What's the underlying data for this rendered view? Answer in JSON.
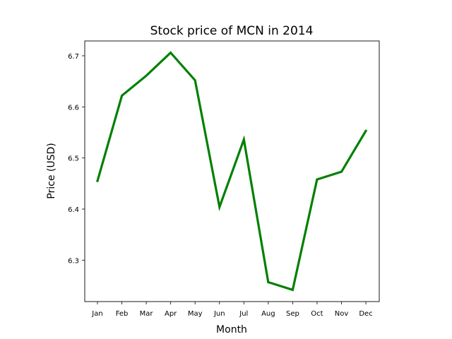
{
  "chart_data": {
    "type": "line",
    "title": "Stock price of MCN in 2014",
    "xlabel": "Month",
    "ylabel": "Price (USD)",
    "categories": [
      "Jan",
      "Feb",
      "Mar",
      "Apr",
      "May",
      "Jun",
      "Jul",
      "Aug",
      "Sep",
      "Oct",
      "Nov",
      "Dec"
    ],
    "series": [
      {
        "values": [
          6.455,
          6.622,
          6.661,
          6.706,
          6.652,
          6.404,
          6.536,
          6.257,
          6.242,
          6.458,
          6.473,
          6.553
        ],
        "color": "#008000"
      }
    ],
    "yticks": [
      "6.3",
      "6.4",
      "6.5",
      "6.6",
      "6.7"
    ],
    "ylim": [
      6.219,
      6.729
    ],
    "grid": false,
    "legend": "none"
  }
}
